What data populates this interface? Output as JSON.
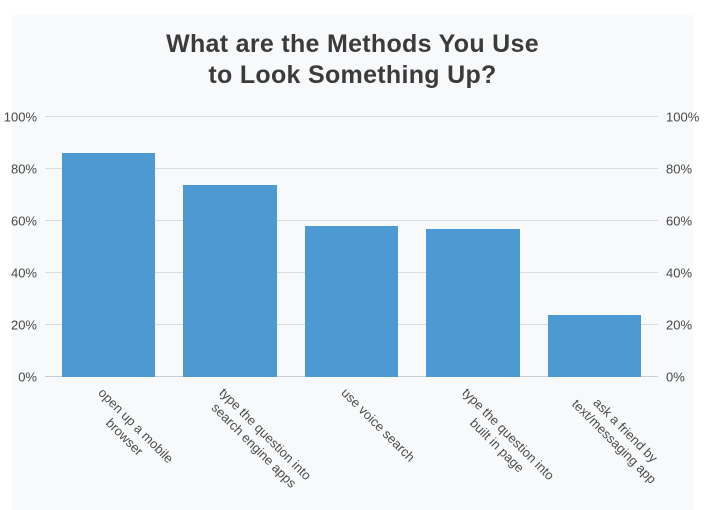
{
  "title": {
    "line1": "What are the Methods You Use",
    "line2": "to Look Something Up?"
  },
  "chart_data": {
    "type": "bar",
    "title": "What are the Methods You Use to Look Something Up?",
    "categories": [
      "open up a mobile browser",
      "type the question into search engine apps",
      "use voice search",
      "type the question into built in page",
      "ask a friend by text/messaging app"
    ],
    "values": [
      86,
      74,
      58,
      57,
      24
    ],
    "category_label_lines": [
      [
        "open up a mobile",
        "browser"
      ],
      [
        "type the question into",
        "search engine apps"
      ],
      [
        "use voice search"
      ],
      [
        "type the question into",
        "built in page"
      ],
      [
        "ask a friend by",
        "text/messaging app"
      ]
    ],
    "xlabel": "",
    "ylabel": "",
    "ylim": [
      0,
      100
    ],
    "y_ticks": [
      "0%",
      "20%",
      "40%",
      "60%",
      "80%",
      "100%"
    ],
    "y_tick_values": [
      0,
      20,
      40,
      60,
      80,
      100
    ],
    "grid": true,
    "dual_y_axis": true,
    "legend": "none",
    "x_label_rotation_deg": 45
  },
  "colors": {
    "bar": "#4D9AD3",
    "gridline": "#DADCDF",
    "axis_line": "#C9CCCF",
    "title_text": "#3B3B3B",
    "tick_text": "#474747",
    "card_background": "#F8F9FA",
    "page_background": "#FFFFFF"
  }
}
